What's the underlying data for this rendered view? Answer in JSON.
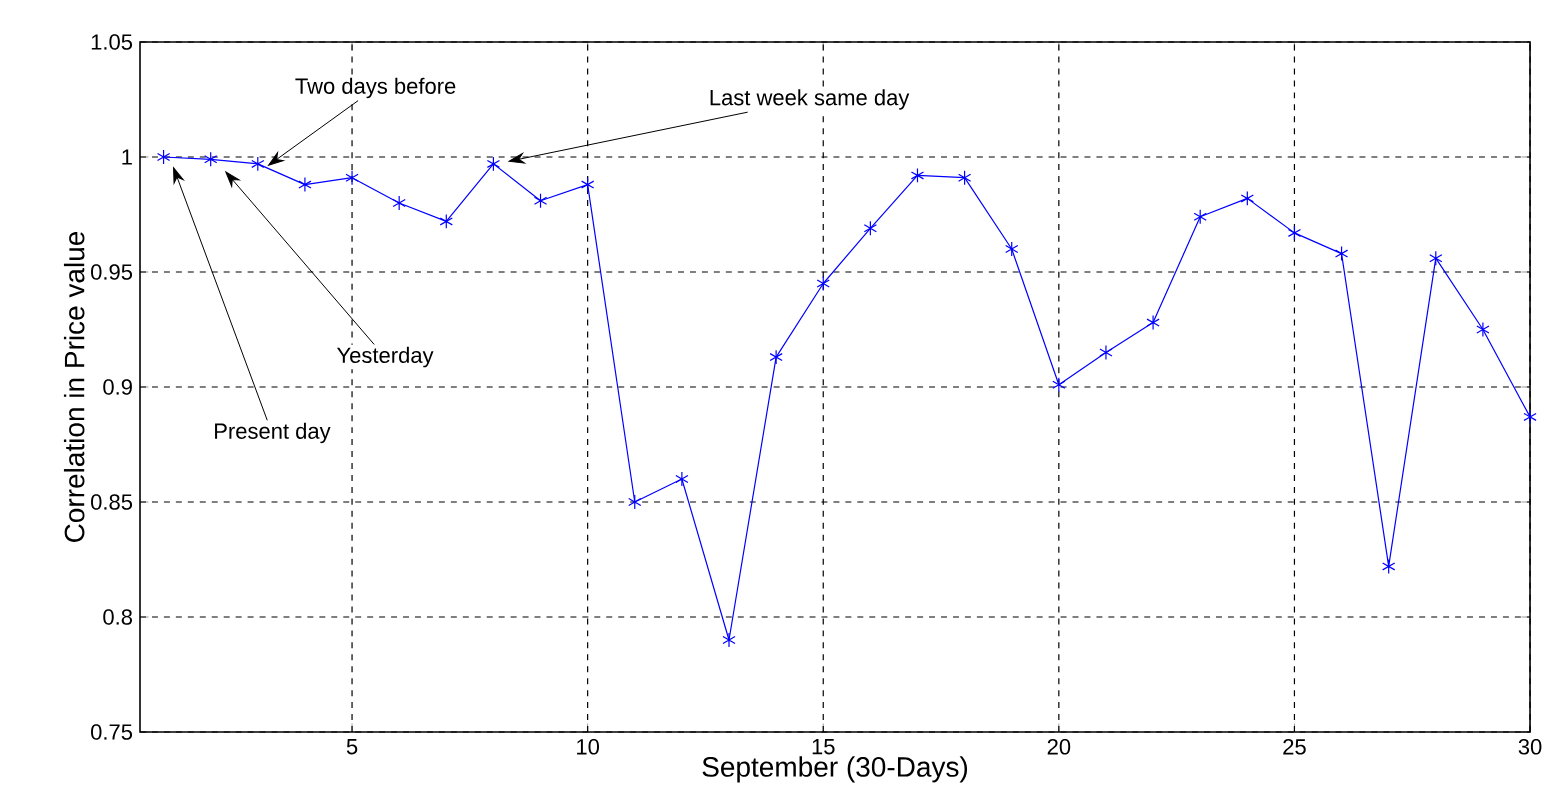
{
  "chart_data": {
    "type": "line",
    "xlabel": "September (30-Days)",
    "ylabel": "Correlation in Price value",
    "x": [
      1,
      2,
      3,
      4,
      5,
      6,
      7,
      8,
      9,
      10,
      11,
      12,
      13,
      14,
      15,
      16,
      17,
      18,
      19,
      20,
      21,
      22,
      23,
      24,
      25,
      26,
      27,
      28,
      29,
      30
    ],
    "series": [
      {
        "color": "#0000ff",
        "values": [
          1.0,
          0.999,
          0.997,
          0.988,
          0.991,
          0.98,
          0.972,
          0.997,
          0.981,
          0.988,
          0.85,
          0.86,
          0.79,
          0.913,
          0.945,
          0.969,
          0.992,
          0.991,
          0.96,
          0.901,
          0.915,
          0.928,
          0.974,
          0.982,
          0.967,
          0.958,
          0.822,
          0.956,
          0.925,
          0.887
        ]
      }
    ],
    "xlim": [
      0.5,
      30
    ],
    "ylim": [
      0.75,
      1.05
    ],
    "xticks": [
      5,
      10,
      15,
      20,
      25,
      30
    ],
    "yticks": [
      0.75,
      0.8,
      0.85,
      0.9,
      0.95,
      1,
      1.05
    ],
    "grid": true,
    "marker": "cross",
    "line_style": "solid",
    "annotations": [
      {
        "text": "Two days before",
        "x": 3.2,
        "y": 0.996
      },
      {
        "text": "Last week same day",
        "x": 8.3,
        "y": 0.998
      },
      {
        "text": "Yesterday",
        "x": 2.3,
        "y": 0.994
      },
      {
        "text": "Present day",
        "x": 1.2,
        "y": 0.996
      }
    ]
  }
}
